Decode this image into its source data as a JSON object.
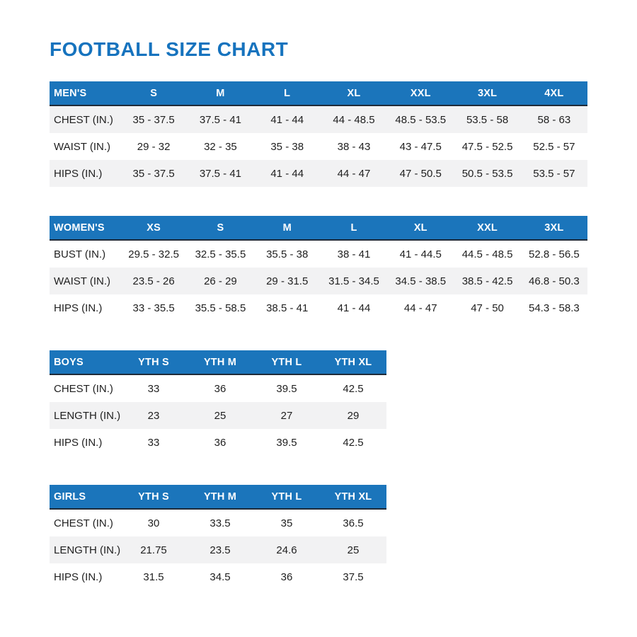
{
  "title": "FOOTBALL SIZE CHART",
  "colors": {
    "title": "#1673BE",
    "header_bg": "#1B75BB",
    "header_text": "#FFFFFF",
    "header_border": "#1E2A38",
    "row_shaded_bg": "#F2F2F3",
    "row_bg": "#FFFFFF",
    "body_text": "#1F1F1F"
  },
  "tables": {
    "mens": {
      "header": [
        "MEN'S",
        "S",
        "M",
        "L",
        "XL",
        "XXL",
        "3XL",
        "4XL"
      ],
      "rows": [
        {
          "label": "CHEST (IN.)",
          "values": [
            "35 - 37.5",
            "37.5 - 41",
            "41 - 44",
            "44 - 48.5",
            "48.5 - 53.5",
            "53.5 - 58",
            "58 - 63"
          ]
        },
        {
          "label": "WAIST (IN.)",
          "values": [
            "29 - 32",
            "32 - 35",
            "35 - 38",
            "38 - 43",
            "43 - 47.5",
            "47.5 - 52.5",
            "52.5 - 57"
          ]
        },
        {
          "label": "HIPS (IN.)",
          "values": [
            "35 - 37.5",
            "37.5 - 41",
            "41 - 44",
            "44 - 47",
            "47 - 50.5",
            "50.5 - 53.5",
            "53.5 - 57"
          ]
        }
      ]
    },
    "womens": {
      "header": [
        "WOMEN'S",
        "XS",
        "S",
        "M",
        "L",
        "XL",
        "XXL",
        "3XL"
      ],
      "rows": [
        {
          "label": "BUST (IN.)",
          "values": [
            "29.5 - 32.5",
            "32.5 - 35.5",
            "35.5 - 38",
            "38 - 41",
            "41 - 44.5",
            "44.5 - 48.5",
            "52.8 - 56.5"
          ]
        },
        {
          "label": "WAIST (IN.)",
          "values": [
            "23.5 - 26",
            "26 - 29",
            "29 - 31.5",
            "31.5 - 34.5",
            "34.5 - 38.5",
            "38.5 - 42.5",
            "46.8 - 50.3"
          ]
        },
        {
          "label": "HIPS (IN.)",
          "values": [
            "33 - 35.5",
            "35.5 - 58.5",
            "38.5 - 41",
            "41 - 44",
            "44 - 47",
            "47 - 50",
            "54.3 - 58.3"
          ]
        }
      ]
    },
    "boys": {
      "header": [
        "BOYS",
        "YTH S",
        "YTH M",
        "YTH L",
        "YTH XL"
      ],
      "rows": [
        {
          "label": "CHEST (IN.)",
          "values": [
            "33",
            "36",
            "39.5",
            "42.5"
          ]
        },
        {
          "label": "LENGTH (IN.)",
          "values": [
            "23",
            "25",
            "27",
            "29"
          ]
        },
        {
          "label": "HIPS (IN.)",
          "values": [
            "33",
            "36",
            "39.5",
            "42.5"
          ]
        }
      ]
    },
    "girls": {
      "header": [
        "GIRLS",
        "YTH S",
        "YTH M",
        "YTH L",
        "YTH XL"
      ],
      "rows": [
        {
          "label": "CHEST (IN.)",
          "values": [
            "30",
            "33.5",
            "35",
            "36.5"
          ]
        },
        {
          "label": "LENGTH (IN.)",
          "values": [
            "21.75",
            "23.5",
            "24.6",
            "25"
          ]
        },
        {
          "label": "HIPS (IN.)",
          "values": [
            "31.5",
            "34.5",
            "36",
            "37.5"
          ]
        }
      ]
    }
  }
}
